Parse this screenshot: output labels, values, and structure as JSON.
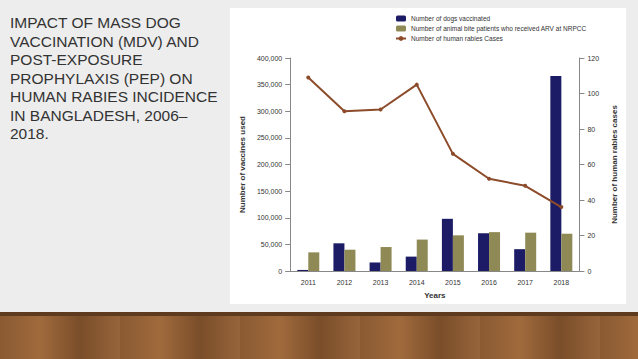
{
  "chart_data": {
    "type": "bar",
    "title": "IMPACT OF MASS DOG VACCINATION (MDV) AND POST-EXPOSURE PROPHYLAXIS (PEP) ON HUMAN RABIES INCIDENCE IN BANGLADESH, 2006–2018.",
    "x_label": "Years",
    "y_label": "Number of vaccines used",
    "y2_label": "Number of human rabies cases",
    "categories": [
      "2011",
      "2012",
      "2013",
      "2014",
      "2015",
      "2016",
      "2017",
      "2018"
    ],
    "series": [
      {
        "name": "Number of dogs vaccinated",
        "type": "bar",
        "color": "#1c1c66",
        "values": [
          2000,
          52000,
          16000,
          27000,
          98000,
          71000,
          41000,
          366000
        ]
      },
      {
        "name": "Number of animal bite patients who received ARV at NRPCC",
        "type": "bar",
        "color": "#8f8a55",
        "values": [
          35000,
          40000,
          45000,
          59000,
          67000,
          73000,
          72000,
          70000
        ]
      },
      {
        "name": "Number of human rabies Cases",
        "type": "line",
        "color": "#8c4b2a",
        "axis": "y2",
        "marker": "circle",
        "values": [
          109,
          90,
          91,
          105,
          66,
          52,
          48,
          36
        ]
      }
    ],
    "ylim": [
      0,
      400000
    ],
    "yticks": [
      0,
      {
        "value": 50000,
        "label": "50,000"
      },
      {
        "value": 100000,
        "label": "100,000"
      },
      {
        "value": 150000,
        "label": "150,000"
      },
      {
        "value": 200000,
        "label": "200,000"
      },
      {
        "value": 250000,
        "label": "250,000"
      },
      {
        "value": 300000,
        "label": "300,000"
      },
      {
        "value": 350000,
        "label": "350,000"
      },
      {
        "value": 400000,
        "label": "400,000"
      }
    ],
    "y2lim": [
      0,
      120
    ],
    "y2ticks": [
      0,
      20,
      40,
      60,
      80,
      100,
      120
    ],
    "legend": "top",
    "grid": false
  }
}
